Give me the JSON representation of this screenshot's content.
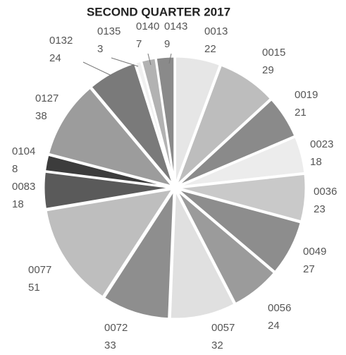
{
  "chart_data": {
    "type": "pie",
    "title": "SECOND QUARTER 2017",
    "categories": [
      "0013",
      "0015",
      "0019",
      "0023",
      "0036",
      "0049",
      "0056",
      "0057",
      "0072",
      "0077",
      "0083",
      "0104",
      "0127",
      "0132",
      "0135",
      "0140",
      "0143"
    ],
    "values": [
      22,
      29,
      21,
      18,
      23,
      27,
      24,
      32,
      33,
      51,
      18,
      8,
      38,
      24,
      3,
      7,
      9
    ],
    "colors": [
      "#e6e6e6",
      "#bdbdbd",
      "#8a8a8a",
      "#ececec",
      "#c9c9c9",
      "#8d8d8d",
      "#9b9b9b",
      "#e0e0e0",
      "#8e8e8e",
      "#bebebe",
      "#5a5a5a",
      "#3c3c3c",
      "#9c9c9c",
      "#7a7a7a",
      "#f0f0f0",
      "#b2b2b2",
      "#8a8a8a"
    ]
  }
}
